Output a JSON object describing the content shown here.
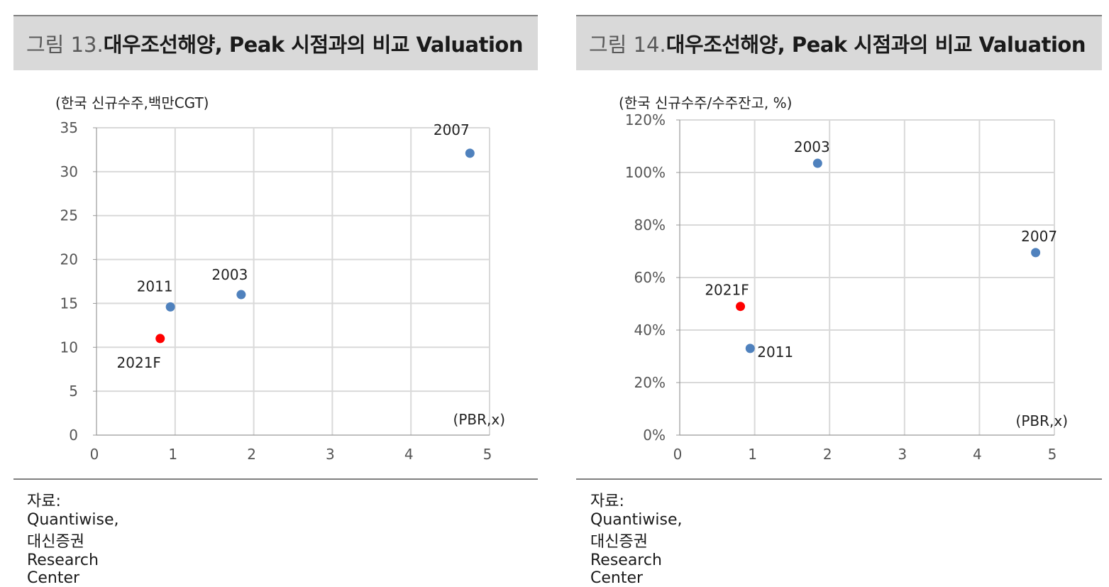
{
  "charts": [
    {
      "figure_number": "그림 13.",
      "title": "대우조선해양, Peak 시점과의 비교 Valuation",
      "source": "자료: Quantiwise, 대신증권 Research Center"
    },
    {
      "figure_number": "그림 14.",
      "title": "대우조선해양, Peak 시점과의 비교 Valuation",
      "source": "자료: Quantiwise, 대신증권 Research Center"
    }
  ],
  "chart_data": [
    {
      "type": "scatter",
      "title": "대우조선해양, Peak 시점과의 비교 Valuation",
      "ylabel": "(한국 신규수주,백만CGT)",
      "xlabel": "(PBR,x)",
      "xlim": [
        0,
        5
      ],
      "ylim": [
        0,
        35
      ],
      "xticks": [
        "0",
        "1",
        "2",
        "3",
        "4",
        "5"
      ],
      "yticks": [
        "0",
        "5",
        "10",
        "15",
        "20",
        "25",
        "30",
        "35"
      ],
      "grid": true,
      "points": [
        {
          "label": "2007",
          "x": 4.75,
          "y": 32.1,
          "color": "#4f81bd"
        },
        {
          "label": "2003",
          "x": 1.84,
          "y": 16.0,
          "color": "#4f81bd"
        },
        {
          "label": "2011",
          "x": 0.94,
          "y": 14.6,
          "color": "#4f81bd"
        },
        {
          "label": "2021F",
          "x": 0.81,
          "y": 11.0,
          "color": "#ff0000"
        }
      ]
    },
    {
      "type": "scatter",
      "title": "대우조선해양, Peak 시점과의 비교 Valuation",
      "ylabel": "(한국 신규수주/수주잔고, %)",
      "xlabel": "(PBR,x)",
      "xlim": [
        0,
        5
      ],
      "ylim": [
        0,
        120
      ],
      "xticks": [
        "0",
        "1",
        "2",
        "3",
        "4",
        "5"
      ],
      "yticks": [
        "0%",
        "20%",
        "40%",
        "60%",
        "80%",
        "100%",
        "120%"
      ],
      "grid": true,
      "points": [
        {
          "label": "2003",
          "x": 1.84,
          "y": 103.5,
          "color": "#4f81bd"
        },
        {
          "label": "2007",
          "x": 4.75,
          "y": 69.5,
          "color": "#4f81bd"
        },
        {
          "label": "2021F",
          "x": 0.81,
          "y": 49.0,
          "color": "#ff0000"
        },
        {
          "label": "2011",
          "x": 0.94,
          "y": 33.0,
          "color": "#4f81bd"
        }
      ]
    }
  ]
}
